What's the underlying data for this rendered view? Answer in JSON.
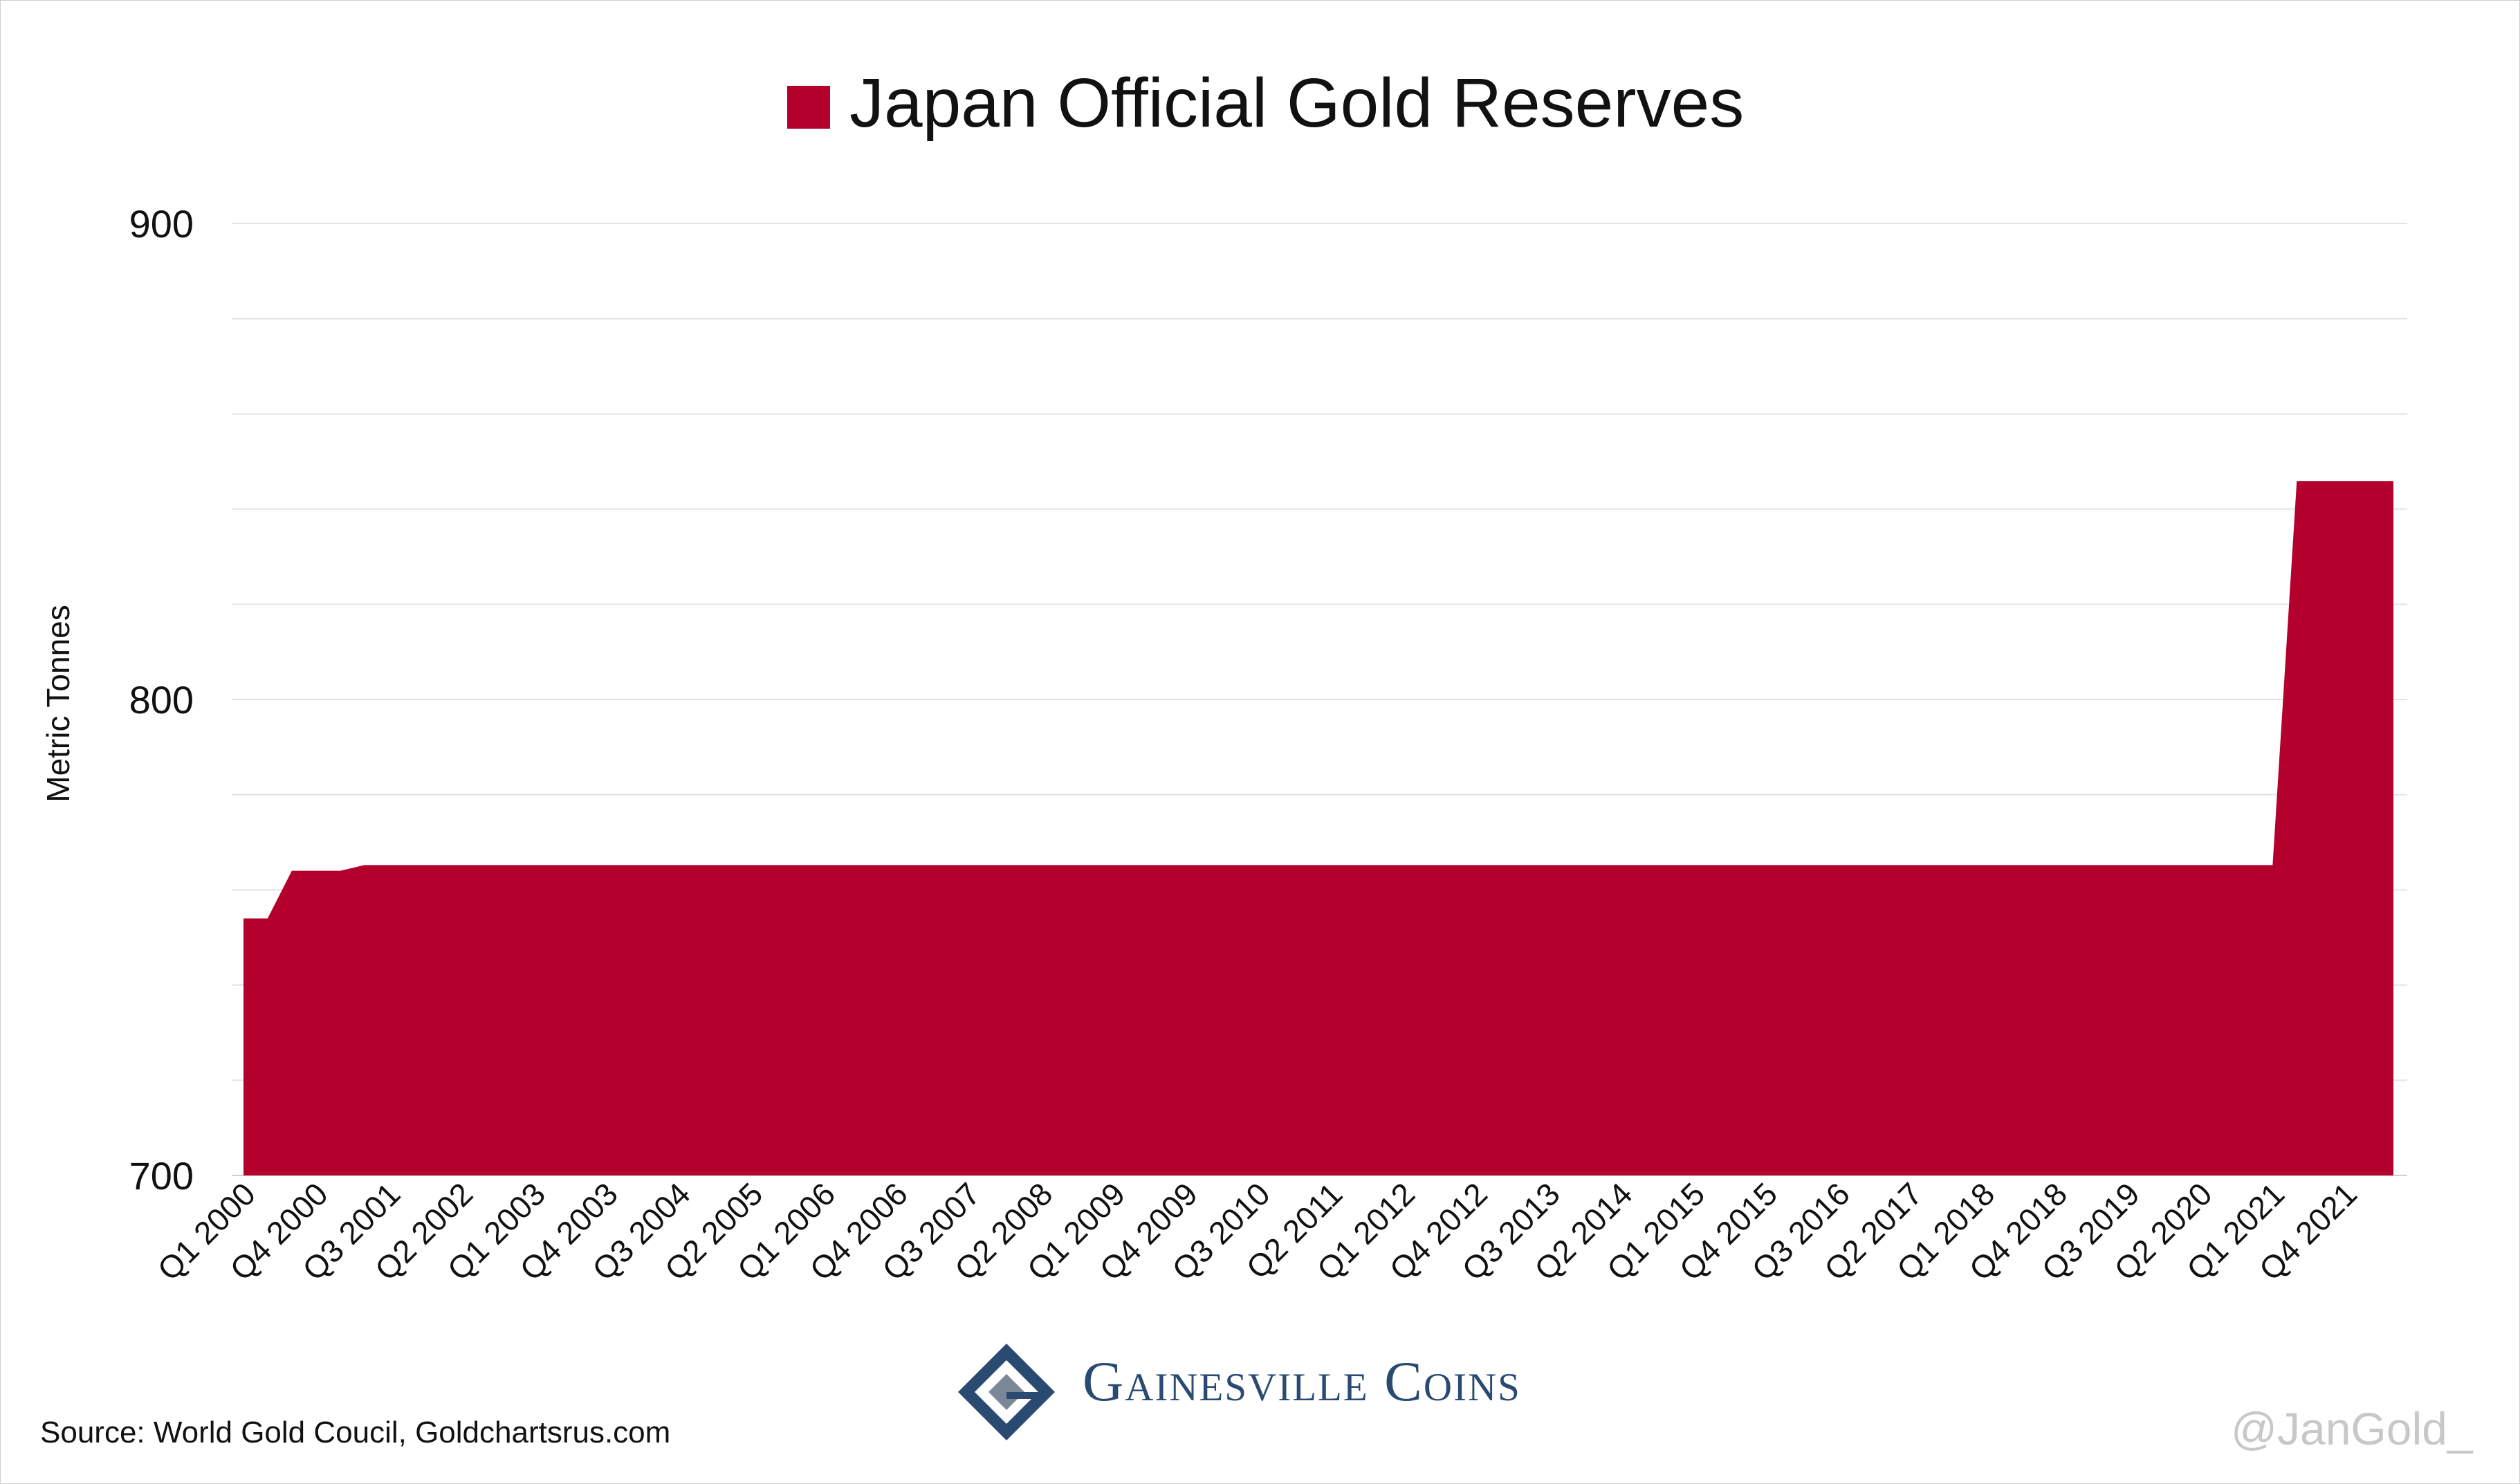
{
  "chart_data": {
    "type": "area",
    "title": "Japan Official Gold Reserves",
    "xlabel": "",
    "ylabel": "Metric Tonnes",
    "ylim": [
      700,
      900
    ],
    "yticks": [
      700,
      800,
      900
    ],
    "grid": true,
    "legend": "top-center",
    "series": [
      {
        "name": "Japan Official Gold Reserves",
        "color": "#b4002d",
        "values": [
          754,
          754,
          764,
          764,
          764,
          765.2,
          765.2,
          765.2,
          765.2,
          765.2,
          765.2,
          765.2,
          765.2,
          765.2,
          765.2,
          765.2,
          765.2,
          765.2,
          765.2,
          765.2,
          765.2,
          765.2,
          765.2,
          765.2,
          765.2,
          765.2,
          765.2,
          765.2,
          765.2,
          765.2,
          765.2,
          765.2,
          765.2,
          765.2,
          765.2,
          765.2,
          765.2,
          765.2,
          765.2,
          765.2,
          765.2,
          765.2,
          765.2,
          765.2,
          765.2,
          765.2,
          765.2,
          765.2,
          765.2,
          765.2,
          765.2,
          765.2,
          765.2,
          765.2,
          765.2,
          765.2,
          765.2,
          765.2,
          765.2,
          765.2,
          765.2,
          765.2,
          765.2,
          765.2,
          765.2,
          765.2,
          765.2,
          765.2,
          765.2,
          765.2,
          765.2,
          765.2,
          765.2,
          765.2,
          765.2,
          765.2,
          765.2,
          765.2,
          765.2,
          765.2,
          765.2,
          765.2,
          765.2,
          765.2,
          765.2,
          845.9,
          845.9,
          845.9,
          845.9,
          845.9
        ]
      }
    ],
    "x_start": "Q1 2000",
    "x_end": "Q2 2022",
    "x_tick_labels": [
      "Q1 2000",
      "Q4 2000",
      "Q3 2001",
      "Q2 2002",
      "Q1 2003",
      "Q4 2003",
      "Q3 2004",
      "Q2 2005",
      "Q1 2006",
      "Q4 2006",
      "Q3 2007",
      "Q2 2008",
      "Q1 2009",
      "Q4 2009",
      "Q3 2010",
      "Q2 2011",
      "Q1 2012",
      "Q4 2012",
      "Q3 2013",
      "Q2 2014",
      "Q1 2015",
      "Q4 2015",
      "Q3 2016",
      "Q2 2017",
      "Q1 2018",
      "Q4 2018",
      "Q3 2019",
      "Q2 2020",
      "Q1 2021",
      "Q4 2021"
    ],
    "x_tick_every": 3
  },
  "footer": {
    "source": "Source: World Gold Coucil, Goldchartsrus.com",
    "logo_text": "Gainesville Coins",
    "handle": "@JanGold_"
  }
}
